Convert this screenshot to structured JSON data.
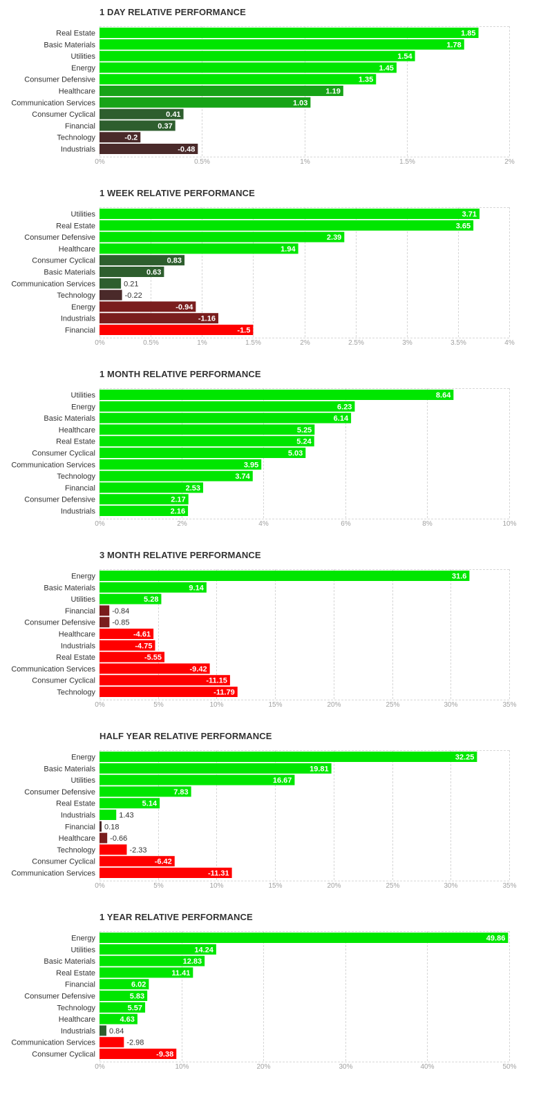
{
  "chart_data": [
    {
      "type": "bar",
      "orientation": "horizontal",
      "title": "1 DAY RELATIVE PERFORMANCE",
      "categories": [
        "Real Estate",
        "Basic Materials",
        "Utilities",
        "Energy",
        "Consumer Defensive",
        "Healthcare",
        "Communication Services",
        "Consumer Cyclical",
        "Financial",
        "Technology",
        "Industrials"
      ],
      "values": [
        1.85,
        1.78,
        1.54,
        1.45,
        1.35,
        1.19,
        1.03,
        0.41,
        0.37,
        -0.2,
        -0.48
      ],
      "value_labels": [
        "1.85",
        "1.78",
        "1.54",
        "1.45",
        "1.35",
        "1.19",
        "1.03",
        "0.41",
        "0.37",
        "-0.2",
        "-0.48"
      ],
      "xlim": [
        0,
        2
      ],
      "ticks": [
        0,
        0.5,
        1,
        1.5,
        2
      ],
      "tick_labels": [
        "0%",
        "0.5%",
        "1%",
        "1.5%",
        "2%"
      ],
      "grid": true
    },
    {
      "type": "bar",
      "orientation": "horizontal",
      "title": "1 WEEK RELATIVE PERFORMANCE",
      "categories": [
        "Utilities",
        "Real Estate",
        "Consumer Defensive",
        "Healthcare",
        "Consumer Cyclical",
        "Basic Materials",
        "Communication Services",
        "Technology",
        "Energy",
        "Industrials",
        "Financial"
      ],
      "values": [
        3.71,
        3.65,
        2.39,
        1.94,
        0.83,
        0.63,
        0.21,
        -0.22,
        -0.94,
        -1.16,
        -1.5
      ],
      "value_labels": [
        "3.71",
        "3.65",
        "2.39",
        "1.94",
        "0.83",
        "0.63",
        "0.21",
        "-0.22",
        "-0.94",
        "-1.16",
        "-1.5"
      ],
      "xlim": [
        0,
        4
      ],
      "ticks": [
        0,
        0.5,
        1,
        1.5,
        2,
        2.5,
        3,
        3.5,
        4
      ],
      "tick_labels": [
        "0%",
        "0.5%",
        "1%",
        "1.5%",
        "2%",
        "2.5%",
        "3%",
        "3.5%",
        "4%"
      ],
      "grid": true
    },
    {
      "type": "bar",
      "orientation": "horizontal",
      "title": "1 MONTH RELATIVE PERFORMANCE",
      "categories": [
        "Utilities",
        "Energy",
        "Basic Materials",
        "Healthcare",
        "Real Estate",
        "Consumer Cyclical",
        "Communication Services",
        "Technology",
        "Financial",
        "Consumer Defensive",
        "Industrials"
      ],
      "values": [
        8.64,
        6.23,
        6.14,
        5.25,
        5.24,
        5.03,
        3.95,
        3.74,
        2.53,
        2.17,
        2.16
      ],
      "value_labels": [
        "8.64",
        "6.23",
        "6.14",
        "5.25",
        "5.24",
        "5.03",
        "3.95",
        "3.74",
        "2.53",
        "2.17",
        "2.16"
      ],
      "xlim": [
        0,
        10
      ],
      "ticks": [
        0,
        2,
        4,
        6,
        8,
        10
      ],
      "tick_labels": [
        "0%",
        "2%",
        "4%",
        "6%",
        "8%",
        "10%"
      ],
      "grid": true
    },
    {
      "type": "bar",
      "orientation": "horizontal",
      "title": "3 MONTH RELATIVE PERFORMANCE",
      "categories": [
        "Energy",
        "Basic Materials",
        "Utilities",
        "Financial",
        "Consumer Defensive",
        "Healthcare",
        "Industrials",
        "Real Estate",
        "Communication Services",
        "Consumer Cyclical",
        "Technology"
      ],
      "values": [
        31.6,
        9.14,
        5.28,
        -0.84,
        -0.85,
        -4.61,
        -4.75,
        -5.55,
        -9.42,
        -11.15,
        -11.79
      ],
      "value_labels": [
        "31.6",
        "9.14",
        "5.28",
        "-0.84",
        "-0.85",
        "-4.61",
        "-4.75",
        "-5.55",
        "-9.42",
        "-11.15",
        "-11.79"
      ],
      "xlim": [
        0,
        35
      ],
      "ticks": [
        0,
        5,
        10,
        15,
        20,
        25,
        30,
        35
      ],
      "tick_labels": [
        "0%",
        "5%",
        "10%",
        "15%",
        "20%",
        "25%",
        "30%",
        "35%"
      ],
      "grid": true
    },
    {
      "type": "bar",
      "orientation": "horizontal",
      "title": "HALF YEAR RELATIVE PERFORMANCE",
      "categories": [
        "Energy",
        "Basic Materials",
        "Utilities",
        "Consumer Defensive",
        "Real Estate",
        "Industrials",
        "Financial",
        "Healthcare",
        "Technology",
        "Consumer Cyclical",
        "Communication Services"
      ],
      "values": [
        32.25,
        19.81,
        16.67,
        7.83,
        5.14,
        1.43,
        0.18,
        -0.66,
        -2.33,
        -6.42,
        -11.31
      ],
      "value_labels": [
        "32.25",
        "19.81",
        "16.67",
        "7.83",
        "5.14",
        "1.43",
        "0.18",
        "-0.66",
        "-2.33",
        "-6.42",
        "-11.31"
      ],
      "xlim": [
        0,
        35
      ],
      "ticks": [
        0,
        5,
        10,
        15,
        20,
        25,
        30,
        35
      ],
      "tick_labels": [
        "0%",
        "5%",
        "10%",
        "15%",
        "20%",
        "25%",
        "30%",
        "35%"
      ],
      "grid": true
    },
    {
      "type": "bar",
      "orientation": "horizontal",
      "title": "1 YEAR RELATIVE PERFORMANCE",
      "categories": [
        "Energy",
        "Utilities",
        "Basic Materials",
        "Real Estate",
        "Financial",
        "Consumer Defensive",
        "Technology",
        "Healthcare",
        "Industrials",
        "Communication Services",
        "Consumer Cyclical"
      ],
      "values": [
        49.86,
        14.24,
        12.83,
        11.41,
        6.02,
        5.83,
        5.57,
        4.63,
        0.84,
        -2.98,
        -9.38
      ],
      "value_labels": [
        "49.86",
        "14.24",
        "12.83",
        "11.41",
        "6.02",
        "5.83",
        "5.57",
        "4.63",
        "0.84",
        "-2.98",
        "-9.38"
      ],
      "xlim": [
        0,
        50
      ],
      "ticks": [
        0,
        10,
        20,
        30,
        40,
        50
      ],
      "tick_labels": [
        "0%",
        "10%",
        "20%",
        "30%",
        "40%",
        "50%"
      ],
      "grid": true
    }
  ],
  "colors": {
    "pos_strong": "#00e600",
    "pos_mid": "#17a317",
    "pos_weak": "#2e5e2e",
    "neg_weak": "#4a2a2a",
    "neg_mid": "#7a1d1d",
    "neg_strong": "#ff0000",
    "grid": "#d6d6d6",
    "tick": "#a0a0a0",
    "text": "#333333"
  }
}
